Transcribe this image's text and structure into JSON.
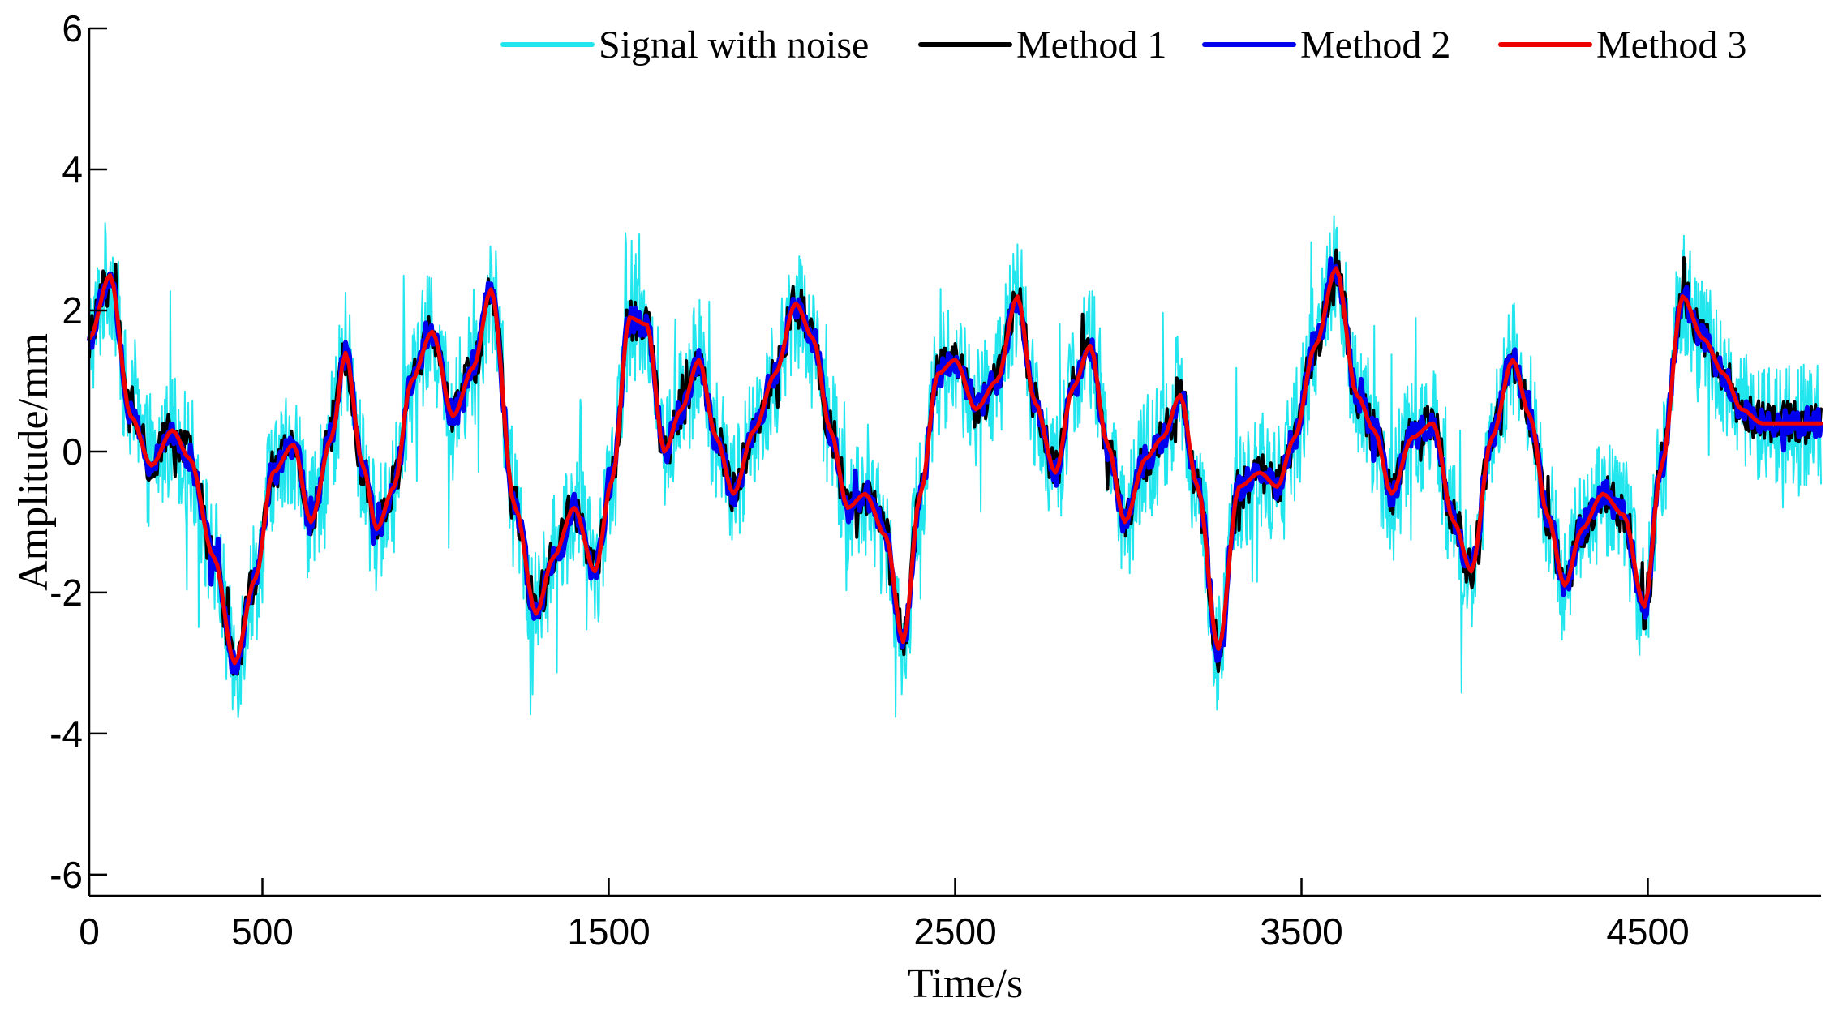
{
  "chart_data": {
    "type": "line",
    "title": "",
    "xlabel": "Time/s",
    "ylabel": "Amplitude/mm",
    "xlim": [
      0,
      5000
    ],
    "ylim": [
      -6.3,
      6
    ],
    "xticks": [
      0,
      500,
      1500,
      2500,
      3500,
      4500
    ],
    "xtick_labels": [
      "0",
      "500",
      "1500",
      "2500",
      "3500",
      "4500"
    ],
    "yticks": [
      6,
      4,
      2,
      0,
      -2,
      -4,
      -6
    ],
    "ytick_labels": [
      "6",
      "4",
      "2",
      "0",
      "-2",
      "-4",
      "-6"
    ],
    "grid": false,
    "legend_position": "top-right",
    "series": [
      {
        "name": "Signal with noise",
        "color": "#22e6ee",
        "line_width": 2,
        "noise": 0.9,
        "x": [
          0,
          60,
          120,
          180,
          240,
          290,
          360,
          420,
          480,
          530,
          590,
          640,
          700,
          740,
          790,
          830,
          880,
          930,
          990,
          1050,
          1110,
          1160,
          1230,
          1290,
          1340,
          1400,
          1460,
          1510,
          1560,
          1610,
          1660,
          1710,
          1760,
          1810,
          1860,
          1920,
          1980,
          2040,
          2090,
          2140,
          2190,
          2240,
          2300,
          2350,
          2400,
          2450,
          2500,
          2560,
          2620,
          2680,
          2730,
          2790,
          2840,
          2890,
          2940,
          2990,
          3050,
          3100,
          3150,
          3200,
          3260,
          3320,
          3380,
          3430,
          3480,
          3540,
          3600,
          3660,
          3710,
          3760,
          3820,
          3880,
          3940,
          3990,
          4050,
          4110,
          4160,
          4210,
          4260,
          4310,
          4370,
          4430,
          4490,
          4540,
          4600,
          4660,
          4720,
          4770,
          4830,
          4890,
          4950,
          5000
        ],
        "values": [
          1.6,
          2.5,
          0.5,
          -0.2,
          0.3,
          -0.1,
          -1.5,
          -3.0,
          -1.8,
          -0.3,
          0.1,
          -1.0,
          0.2,
          1.4,
          -0.2,
          -1.1,
          -0.5,
          1.0,
          1.7,
          0.5,
          1.2,
          2.3,
          -0.8,
          -2.3,
          -1.5,
          -0.8,
          -1.7,
          -0.4,
          1.9,
          1.8,
          0.0,
          0.6,
          1.3,
          0.2,
          -0.6,
          0.3,
          1.1,
          2.1,
          1.6,
          0.3,
          -0.8,
          -0.6,
          -1.2,
          -2.7,
          -0.6,
          1.1,
          1.3,
          0.6,
          1.0,
          2.2,
          0.7,
          -0.3,
          0.9,
          1.5,
          0.1,
          -1.0,
          -0.1,
          0.2,
          0.8,
          -0.5,
          -2.8,
          -0.5,
          -0.3,
          -0.5,
          0.2,
          1.5,
          2.6,
          0.8,
          0.3,
          -0.6,
          0.2,
          0.4,
          -1.0,
          -1.7,
          0.2,
          1.3,
          0.5,
          -0.9,
          -1.9,
          -1.1,
          -0.6,
          -0.9,
          -2.2,
          -0.2,
          2.2,
          1.6,
          1.1,
          0.6,
          0.4,
          0.4,
          0.4,
          0.4
        ]
      },
      {
        "name": "Method 1",
        "color": "#000000",
        "line_width": 4,
        "noise": 0.32,
        "x": [
          0,
          60,
          120,
          180,
          240,
          290,
          360,
          420,
          480,
          530,
          590,
          640,
          700,
          740,
          790,
          830,
          880,
          930,
          990,
          1050,
          1110,
          1160,
          1230,
          1290,
          1340,
          1400,
          1460,
          1510,
          1560,
          1610,
          1660,
          1710,
          1760,
          1810,
          1860,
          1920,
          1980,
          2040,
          2090,
          2140,
          2190,
          2240,
          2300,
          2350,
          2400,
          2450,
          2500,
          2560,
          2620,
          2680,
          2730,
          2790,
          2840,
          2890,
          2940,
          2990,
          3050,
          3100,
          3150,
          3200,
          3260,
          3320,
          3380,
          3430,
          3480,
          3540,
          3600,
          3660,
          3710,
          3760,
          3820,
          3880,
          3940,
          3990,
          4050,
          4110,
          4160,
          4210,
          4260,
          4310,
          4370,
          4430,
          4490,
          4540,
          4600,
          4660,
          4720,
          4770,
          4830,
          4890,
          4950,
          5000
        ],
        "values": [
          1.6,
          2.5,
          0.5,
          -0.2,
          0.3,
          -0.1,
          -1.5,
          -3.0,
          -1.8,
          -0.3,
          0.1,
          -1.0,
          0.2,
          1.4,
          -0.2,
          -1.1,
          -0.5,
          1.0,
          1.7,
          0.5,
          1.2,
          2.3,
          -0.8,
          -2.3,
          -1.5,
          -0.8,
          -1.7,
          -0.4,
          1.9,
          1.8,
          0.0,
          0.6,
          1.3,
          0.2,
          -0.6,
          0.3,
          1.1,
          2.1,
          1.6,
          0.3,
          -0.8,
          -0.6,
          -1.2,
          -2.7,
          -0.6,
          1.1,
          1.3,
          0.6,
          1.0,
          2.2,
          0.7,
          -0.3,
          0.9,
          1.5,
          0.1,
          -1.0,
          -0.1,
          0.2,
          0.8,
          -0.5,
          -2.8,
          -0.5,
          -0.3,
          -0.5,
          0.2,
          1.5,
          2.6,
          0.8,
          0.3,
          -0.6,
          0.2,
          0.4,
          -1.0,
          -1.7,
          0.2,
          1.3,
          0.5,
          -0.9,
          -1.9,
          -1.1,
          -0.6,
          -0.9,
          -2.2,
          -0.2,
          2.2,
          1.6,
          1.1,
          0.6,
          0.4,
          0.4,
          0.4,
          0.4
        ]
      },
      {
        "name": "Method 2",
        "color": "#0000ee",
        "line_width": 6,
        "noise": 0.2,
        "x": [
          0,
          60,
          120,
          180,
          240,
          290,
          360,
          420,
          480,
          530,
          590,
          640,
          700,
          740,
          790,
          830,
          880,
          930,
          990,
          1050,
          1110,
          1160,
          1230,
          1290,
          1340,
          1400,
          1460,
          1510,
          1560,
          1610,
          1660,
          1710,
          1760,
          1810,
          1860,
          1920,
          1980,
          2040,
          2090,
          2140,
          2190,
          2240,
          2300,
          2350,
          2400,
          2450,
          2500,
          2560,
          2620,
          2680,
          2730,
          2790,
          2840,
          2890,
          2940,
          2990,
          3050,
          3100,
          3150,
          3200,
          3260,
          3320,
          3380,
          3430,
          3480,
          3540,
          3600,
          3660,
          3710,
          3760,
          3820,
          3880,
          3940,
          3990,
          4050,
          4110,
          4160,
          4210,
          4260,
          4310,
          4370,
          4430,
          4490,
          4540,
          4600,
          4660,
          4720,
          4770,
          4830,
          4890,
          4950,
          5000
        ],
        "values": [
          1.6,
          2.5,
          0.5,
          -0.2,
          0.3,
          -0.1,
          -1.5,
          -3.0,
          -1.8,
          -0.3,
          0.1,
          -1.0,
          0.2,
          1.4,
          -0.2,
          -1.1,
          -0.5,
          1.0,
          1.7,
          0.5,
          1.2,
          2.3,
          -0.8,
          -2.3,
          -1.5,
          -0.8,
          -1.7,
          -0.4,
          1.9,
          1.8,
          0.0,
          0.6,
          1.3,
          0.2,
          -0.6,
          0.3,
          1.1,
          2.1,
          1.6,
          0.3,
          -0.8,
          -0.6,
          -1.2,
          -2.7,
          -0.6,
          1.1,
          1.3,
          0.6,
          1.0,
          2.2,
          0.7,
          -0.3,
          0.9,
          1.5,
          0.1,
          -1.0,
          -0.1,
          0.2,
          0.8,
          -0.5,
          -2.8,
          -0.5,
          -0.3,
          -0.5,
          0.2,
          1.5,
          2.6,
          0.8,
          0.3,
          -0.6,
          0.2,
          0.4,
          -1.0,
          -1.7,
          0.2,
          1.3,
          0.5,
          -0.9,
          -1.9,
          -1.1,
          -0.6,
          -0.9,
          -2.2,
          -0.2,
          2.2,
          1.6,
          1.1,
          0.6,
          0.4,
          0.4,
          0.4,
          0.4
        ]
      },
      {
        "name": "Method 3",
        "color": "#ee0000",
        "line_width": 5,
        "noise": 0,
        "x": [
          0,
          60,
          120,
          180,
          240,
          290,
          360,
          420,
          480,
          530,
          590,
          640,
          700,
          740,
          790,
          830,
          880,
          930,
          990,
          1050,
          1110,
          1160,
          1230,
          1290,
          1340,
          1400,
          1460,
          1510,
          1560,
          1610,
          1660,
          1710,
          1760,
          1810,
          1860,
          1920,
          1980,
          2040,
          2090,
          2140,
          2190,
          2240,
          2300,
          2350,
          2400,
          2450,
          2500,
          2560,
          2620,
          2680,
          2730,
          2790,
          2840,
          2890,
          2940,
          2990,
          3050,
          3100,
          3150,
          3200,
          3260,
          3320,
          3380,
          3430,
          3480,
          3540,
          3600,
          3660,
          3710,
          3760,
          3820,
          3880,
          3940,
          3990,
          4050,
          4110,
          4160,
          4210,
          4260,
          4310,
          4370,
          4430,
          4490,
          4540,
          4600,
          4660,
          4720,
          4770,
          4830,
          4890,
          4950,
          5000
        ],
        "values": [
          1.6,
          2.5,
          0.5,
          -0.2,
          0.3,
          -0.1,
          -1.5,
          -3.0,
          -1.8,
          -0.3,
          0.1,
          -1.0,
          0.2,
          1.4,
          -0.2,
          -1.1,
          -0.5,
          1.0,
          1.7,
          0.5,
          1.2,
          2.3,
          -0.8,
          -2.3,
          -1.5,
          -0.8,
          -1.7,
          -0.4,
          1.9,
          1.8,
          0.0,
          0.6,
          1.3,
          0.2,
          -0.6,
          0.3,
          1.1,
          2.1,
          1.6,
          0.3,
          -0.8,
          -0.6,
          -1.2,
          -2.7,
          -0.6,
          1.1,
          1.3,
          0.6,
          1.0,
          2.2,
          0.7,
          -0.3,
          0.9,
          1.5,
          0.1,
          -1.0,
          -0.1,
          0.2,
          0.8,
          -0.5,
          -2.8,
          -0.5,
          -0.3,
          -0.5,
          0.2,
          1.5,
          2.6,
          0.8,
          0.3,
          -0.6,
          0.2,
          0.4,
          -1.0,
          -1.7,
          0.2,
          1.3,
          0.5,
          -0.9,
          -1.9,
          -1.1,
          -0.6,
          -0.9,
          -2.2,
          -0.2,
          2.2,
          1.6,
          1.1,
          0.6,
          0.4,
          0.4,
          0.4,
          0.4
        ]
      }
    ]
  }
}
